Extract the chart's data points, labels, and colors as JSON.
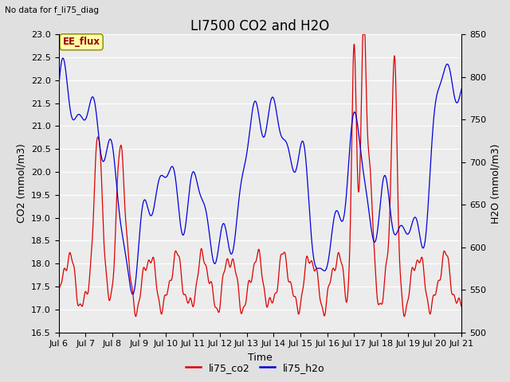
{
  "title": "LI7500 CO2 and H2O",
  "top_left_text": "No data for f_li75_diag",
  "annotation_box": "EE_flux",
  "xlabel": "Time",
  "ylabel_left": "CO2 (mmol/m3)",
  "ylabel_right": "H2O (mmol/m3)",
  "ylim_left": [
    16.5,
    23.0
  ],
  "ylim_right": [
    500,
    850
  ],
  "yticks_left": [
    16.5,
    17.0,
    17.5,
    18.0,
    18.5,
    19.0,
    19.5,
    20.0,
    20.5,
    21.0,
    21.5,
    22.0,
    22.5,
    23.0
  ],
  "yticks_right": [
    500,
    550,
    600,
    650,
    700,
    750,
    800,
    850
  ],
  "xtick_labels": [
    "Jul 6",
    "Jul 7",
    "Jul 8",
    "Jul 9",
    "Jul 10",
    "Jul 11",
    "Jul 12",
    "Jul 13",
    "Jul 14",
    "Jul 15",
    "Jul 16",
    "Jul 17",
    "Jul 18",
    "Jul 19",
    "Jul 20",
    "Jul 21"
  ],
  "color_co2": "#dd0000",
  "color_h2o": "#0000dd",
  "legend_entries": [
    "li75_co2",
    "li75_h2o"
  ],
  "background_color": "#e0e0e0",
  "plot_bg_color": "#ececec",
  "grid_color": "#ffffff",
  "title_fontsize": 12,
  "label_fontsize": 9,
  "tick_fontsize": 8
}
